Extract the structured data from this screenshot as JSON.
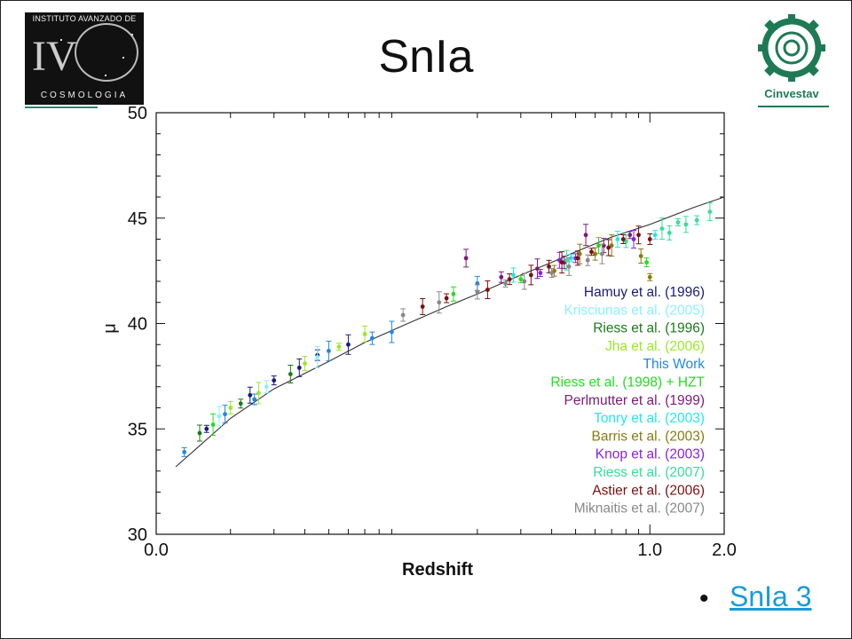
{
  "slide": {
    "title": "SnIa",
    "link_text": "SnIa 3"
  },
  "logos": {
    "left": {
      "top_text": "INSTITUTO AVANZADO DE",
      "bottom_text": "COSMOLOGIA",
      "icon": "iac-cosmology-logo"
    },
    "right": {
      "name": "Cinvestav",
      "icon": "cinvestav-gear-logo",
      "color": "#1e7a55"
    }
  },
  "chart_data": {
    "type": "scatter",
    "xlabel": "Redshift",
    "ylabel": "μ",
    "x_scale": "log",
    "xlim": [
      0.01,
      2.0
    ],
    "ylim": [
      30,
      50
    ],
    "x_ticks": [
      {
        "value": 0.01,
        "label": "0.0"
      },
      {
        "value": 1.0,
        "label": "1.0"
      },
      {
        "value": 2.0,
        "label": "2.0"
      }
    ],
    "y_ticks": [
      30,
      35,
      40,
      45,
      50
    ],
    "legend_position": "right",
    "fit_curve": [
      [
        0.012,
        33.2
      ],
      [
        0.015,
        34.2
      ],
      [
        0.02,
        35.5
      ],
      [
        0.03,
        36.9
      ],
      [
        0.05,
        38.2
      ],
      [
        0.07,
        39.1
      ],
      [
        0.1,
        39.9
      ],
      [
        0.15,
        40.8
      ],
      [
        0.2,
        41.4
      ],
      [
        0.3,
        42.3
      ],
      [
        0.4,
        42.9
      ],
      [
        0.5,
        43.4
      ],
      [
        0.7,
        44.1
      ],
      [
        1.0,
        44.7
      ],
      [
        1.5,
        45.5
      ],
      [
        2.0,
        46.0
      ]
    ],
    "series": [
      {
        "name": "Hamuy et al. (1996)",
        "color": "#1a1a80",
        "points": [
          [
            0.016,
            35.0
          ],
          [
            0.024,
            36.6
          ],
          [
            0.03,
            37.3
          ],
          [
            0.038,
            37.9
          ],
          [
            0.045,
            38.5
          ],
          [
            0.06,
            39.0
          ]
        ]
      },
      {
        "name": "Krisciunas et al. (2005)",
        "color": "#8ef0ff",
        "points": [
          [
            0.018,
            35.6
          ],
          [
            0.028,
            37.0
          ],
          [
            0.045,
            38.4
          ]
        ]
      },
      {
        "name": "Riess et al. (1996)",
        "color": "#1a7a1a",
        "points": [
          [
            0.015,
            34.8
          ],
          [
            0.022,
            36.2
          ],
          [
            0.035,
            37.6
          ]
        ]
      },
      {
        "name": "Jha et al. (2006)",
        "color": "#9be82a",
        "points": [
          [
            0.02,
            36.0
          ],
          [
            0.026,
            36.7
          ],
          [
            0.04,
            38.1
          ],
          [
            0.055,
            38.9
          ],
          [
            0.07,
            39.5
          ]
        ]
      },
      {
        "name": "This Work",
        "color": "#1e88e5",
        "points": [
          [
            0.013,
            33.9
          ],
          [
            0.019,
            35.7
          ],
          [
            0.025,
            36.4
          ],
          [
            0.05,
            38.7
          ],
          [
            0.075,
            39.3
          ],
          [
            0.09,
            39.6
          ],
          [
            0.2,
            41.9
          ]
        ]
      },
      {
        "name": "Riess et al. (1998) + HZT",
        "color": "#22dd22",
        "points": [
          [
            0.017,
            35.2
          ],
          [
            0.16,
            41.4
          ],
          [
            0.3,
            42.1
          ],
          [
            0.62,
            43.7
          ],
          [
            0.97,
            42.9
          ]
        ]
      },
      {
        "name": "Perlmutter et al. (1999)",
        "color": "#7a1a7a",
        "points": [
          [
            0.18,
            43.1
          ],
          [
            0.25,
            42.2
          ],
          [
            0.35,
            42.6
          ],
          [
            0.45,
            42.9
          ],
          [
            0.55,
            44.2
          ],
          [
            0.65,
            43.7
          ],
          [
            0.83,
            44.2
          ]
        ]
      },
      {
        "name": "Tonry et al. (2003)",
        "color": "#22e8ee",
        "points": [
          [
            0.28,
            42.3
          ],
          [
            0.48,
            43.1
          ],
          [
            0.74,
            44.0
          ],
          [
            1.05,
            44.2
          ]
        ]
      },
      {
        "name": "Barris et al. (2003)",
        "color": "#8a7a10",
        "points": [
          [
            0.41,
            42.5
          ],
          [
            0.52,
            43.3
          ],
          [
            0.6,
            43.3
          ],
          [
            0.7,
            43.7
          ],
          [
            0.92,
            43.2
          ],
          [
            1.0,
            42.2
          ]
        ]
      },
      {
        "name": "Knop et al. (2003)",
        "color": "#8822dd",
        "points": [
          [
            0.36,
            42.4
          ],
          [
            0.43,
            43.0
          ],
          [
            0.5,
            43.1
          ],
          [
            0.86,
            44.0
          ]
        ]
      },
      {
        "name": "Riess et al. (2007)",
        "color": "#33e09a",
        "points": [
          [
            0.46,
            43.0
          ],
          [
            0.8,
            43.9
          ],
          [
            1.12,
            44.5
          ],
          [
            1.2,
            44.3
          ],
          [
            1.3,
            44.8
          ],
          [
            1.4,
            44.7
          ],
          [
            1.55,
            44.9
          ],
          [
            1.75,
            45.3
          ]
        ]
      },
      {
        "name": "Astier et al. (2006)",
        "color": "#7a1010",
        "points": [
          [
            0.12,
            40.8
          ],
          [
            0.15,
            41.2
          ],
          [
            0.22,
            41.6
          ],
          [
            0.27,
            42.1
          ],
          [
            0.33,
            42.3
          ],
          [
            0.39,
            42.7
          ],
          [
            0.44,
            42.9
          ],
          [
            0.51,
            43.1
          ],
          [
            0.58,
            43.4
          ],
          [
            0.68,
            43.6
          ],
          [
            0.78,
            44.0
          ],
          [
            0.9,
            44.2
          ],
          [
            1.0,
            44.0
          ]
        ]
      },
      {
        "name": "Miknaitis et al. (2007)",
        "color": "#888888",
        "points": [
          [
            0.1,
            40.4
          ],
          [
            0.14,
            41.0
          ],
          [
            0.2,
            41.5
          ],
          [
            0.26,
            41.9
          ],
          [
            0.31,
            42.0
          ],
          [
            0.4,
            42.4
          ],
          [
            0.47,
            42.7
          ],
          [
            0.56,
            43.0
          ],
          [
            0.64,
            43.3
          ]
        ]
      }
    ]
  }
}
